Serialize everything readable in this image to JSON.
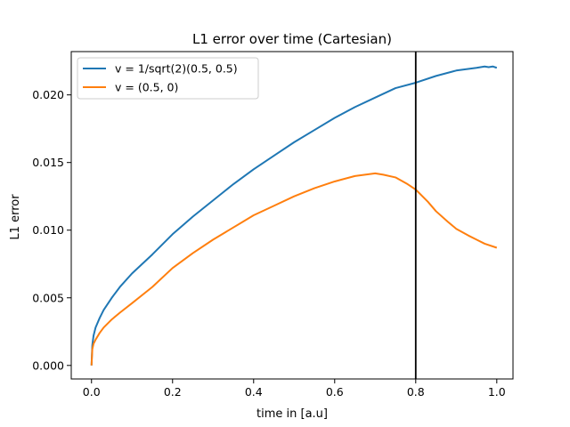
{
  "chart_data": {
    "type": "line",
    "title": "L1 error over time (Cartesian)",
    "xlabel": "time in [a.u]",
    "ylabel": "L1 error",
    "xlim": [
      -0.05,
      1.04
    ],
    "ylim": [
      -0.001,
      0.0232
    ],
    "x_ticks": [
      "0.0",
      "0.2",
      "0.4",
      "0.6",
      "0.8",
      "1.0"
    ],
    "y_ticks": [
      "0.000",
      "0.005",
      "0.010",
      "0.015",
      "0.020"
    ],
    "grid": false,
    "legend_position": "top-left",
    "vertical_line_x": 0.8,
    "vertical_line_color": "#000000",
    "series": [
      {
        "name": "v = 1/sqrt(2)(0.5, 0.5)",
        "color": "#1f77b4",
        "x": [
          0.0,
          0.002,
          0.005,
          0.01,
          0.02,
          0.03,
          0.05,
          0.07,
          0.1,
          0.15,
          0.2,
          0.25,
          0.3,
          0.35,
          0.4,
          0.45,
          0.5,
          0.55,
          0.6,
          0.65,
          0.7,
          0.75,
          0.8,
          0.85,
          0.9,
          0.95,
          0.97,
          0.98,
          0.99,
          1.0
        ],
        "y": [
          0.0,
          0.0015,
          0.0022,
          0.0028,
          0.0035,
          0.0041,
          0.005,
          0.0058,
          0.0068,
          0.0082,
          0.0097,
          0.011,
          0.0122,
          0.0134,
          0.0145,
          0.0155,
          0.0165,
          0.0174,
          0.0183,
          0.0191,
          0.0198,
          0.0205,
          0.0209,
          0.0214,
          0.0218,
          0.022,
          0.0221,
          0.02205,
          0.0221,
          0.022
        ]
      },
      {
        "name": "v = (0.5, 0)",
        "color": "#ff7f0e",
        "x": [
          0.0,
          0.002,
          0.005,
          0.01,
          0.02,
          0.03,
          0.05,
          0.07,
          0.1,
          0.15,
          0.2,
          0.25,
          0.3,
          0.35,
          0.4,
          0.45,
          0.5,
          0.55,
          0.6,
          0.65,
          0.7,
          0.72,
          0.75,
          0.78,
          0.8,
          0.83,
          0.85,
          0.88,
          0.9,
          0.93,
          0.95,
          0.97,
          1.0
        ],
        "y": [
          0.0,
          0.0012,
          0.0016,
          0.0019,
          0.0024,
          0.0028,
          0.0034,
          0.0039,
          0.0046,
          0.0058,
          0.0072,
          0.0083,
          0.0093,
          0.0102,
          0.0111,
          0.0118,
          0.0125,
          0.0131,
          0.0136,
          0.014,
          0.0142,
          0.0141,
          0.0139,
          0.0134,
          0.013,
          0.0121,
          0.0114,
          0.0106,
          0.0101,
          0.0096,
          0.0093,
          0.009,
          0.0087
        ]
      }
    ]
  }
}
